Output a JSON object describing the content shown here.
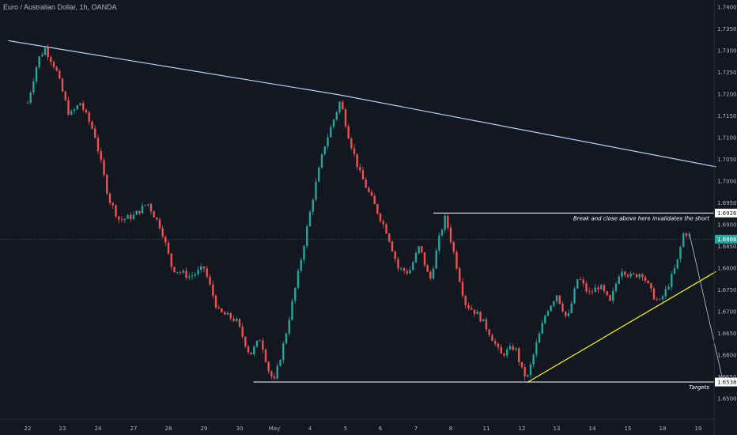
{
  "header": {
    "title": "Euro / Australian Dollar, 1h, OANDA"
  },
  "colors": {
    "background": "#131722",
    "up_candle": "#26a69a",
    "down_candle": "#ef5350",
    "resistance_trendline": "#b3d1f5",
    "support_trendline": "#ffff00",
    "horizontal_lines": "#ffffff",
    "current_price": "#26a69a"
  },
  "chart_data": {
    "type": "candlestick",
    "title": "Euro / Australian Dollar, 1h, OANDA",
    "ylim": [
      1.645,
      1.741
    ],
    "y_ticks": [
      "1.74000",
      "1.73500",
      "1.73000",
      "1.72500",
      "1.72000",
      "1.71500",
      "1.71000",
      "1.70500",
      "1.70000",
      "1.69500",
      "1.69000",
      "1.68500",
      "1.68000",
      "1.67500",
      "1.67000",
      "1.66500",
      "1.66000",
      "1.65500",
      "1.65000"
    ],
    "x_ticks": [
      "22",
      "23",
      "24",
      "27",
      "28",
      "29",
      "30",
      "May",
      "4",
      "5",
      "6",
      "7",
      "8",
      "11",
      "12",
      "13",
      "14",
      "15",
      "18",
      "19"
    ],
    "price_path": [
      {
        "x": 0.0,
        "y": 1.718
      },
      {
        "x": 0.3,
        "y": 1.728
      },
      {
        "x": 0.5,
        "y": 1.7305
      },
      {
        "x": 0.8,
        "y": 1.726
      },
      {
        "x": 1.2,
        "y": 1.715
      },
      {
        "x": 1.5,
        "y": 1.718
      },
      {
        "x": 1.9,
        "y": 1.711
      },
      {
        "x": 2.3,
        "y": 1.696
      },
      {
        "x": 2.6,
        "y": 1.691
      },
      {
        "x": 3.0,
        "y": 1.692
      },
      {
        "x": 3.4,
        "y": 1.695
      },
      {
        "x": 3.8,
        "y": 1.689
      },
      {
        "x": 4.1,
        "y": 1.68
      },
      {
        "x": 4.6,
        "y": 1.678
      },
      {
        "x": 5.0,
        "y": 1.68
      },
      {
        "x": 5.4,
        "y": 1.67
      },
      {
        "x": 5.9,
        "y": 1.668
      },
      {
        "x": 6.3,
        "y": 1.66
      },
      {
        "x": 6.6,
        "y": 1.664
      },
      {
        "x": 6.85,
        "y": 1.656
      },
      {
        "x": 7.0,
        "y": 1.654
      },
      {
        "x": 7.3,
        "y": 1.664
      },
      {
        "x": 7.7,
        "y": 1.68
      },
      {
        "x": 8.1,
        "y": 1.697
      },
      {
        "x": 8.4,
        "y": 1.708
      },
      {
        "x": 8.7,
        "y": 1.715
      },
      {
        "x": 8.85,
        "y": 1.7185
      },
      {
        "x": 9.1,
        "y": 1.71
      },
      {
        "x": 9.4,
        "y": 1.702
      },
      {
        "x": 9.8,
        "y": 1.695
      },
      {
        "x": 10.2,
        "y": 1.688
      },
      {
        "x": 10.5,
        "y": 1.68
      },
      {
        "x": 10.8,
        "y": 1.679
      },
      {
        "x": 11.1,
        "y": 1.685
      },
      {
        "x": 11.4,
        "y": 1.677
      },
      {
        "x": 11.7,
        "y": 1.688
      },
      {
        "x": 11.85,
        "y": 1.6918
      },
      {
        "x": 12.1,
        "y": 1.683
      },
      {
        "x": 12.4,
        "y": 1.672
      },
      {
        "x": 12.8,
        "y": 1.669
      },
      {
        "x": 13.1,
        "y": 1.665
      },
      {
        "x": 13.4,
        "y": 1.66
      },
      {
        "x": 13.8,
        "y": 1.662
      },
      {
        "x": 14.0,
        "y": 1.6565
      },
      {
        "x": 14.15,
        "y": 1.6545
      },
      {
        "x": 14.4,
        "y": 1.662
      },
      {
        "x": 14.7,
        "y": 1.67
      },
      {
        "x": 15.0,
        "y": 1.674
      },
      {
        "x": 15.3,
        "y": 1.668
      },
      {
        "x": 15.6,
        "y": 1.678
      },
      {
        "x": 15.9,
        "y": 1.674
      },
      {
        "x": 16.2,
        "y": 1.676
      },
      {
        "x": 16.5,
        "y": 1.672
      },
      {
        "x": 16.8,
        "y": 1.68
      },
      {
        "x": 17.1,
        "y": 1.678
      },
      {
        "x": 17.4,
        "y": 1.679
      },
      {
        "x": 17.7,
        "y": 1.674
      },
      {
        "x": 17.9,
        "y": 1.672
      },
      {
        "x": 18.1,
        "y": 1.675
      },
      {
        "x": 18.4,
        "y": 1.681
      },
      {
        "x": 18.6,
        "y": 1.6885
      },
      {
        "x": 18.8,
        "y": 1.687
      }
    ],
    "annotations": {
      "invalidation_label": "Break and close above here invalidates the short",
      "invalidation_price": "1.69266",
      "current_price": "1.68666",
      "targets_label": "Targets",
      "target_price": "1.65381"
    },
    "lines": {
      "resistance": [
        {
          "x": -0.55,
          "y": 1.7323
        },
        {
          "x": 8.85,
          "y": 1.7198
        },
        {
          "x": 19.5,
          "y": 1.7033
        }
      ],
      "support": [
        {
          "x": 14.15,
          "y": 1.6537
        },
        {
          "x": 19.5,
          "y": 1.6792
        }
      ],
      "invalidation": {
        "from_x": 11.5,
        "to_x": 19.5,
        "y": 1.69266
      },
      "target": {
        "from_x": 6.4,
        "to_x": 19.5,
        "y": 1.65381
      },
      "projection": [
        {
          "x": 18.75,
          "y": 1.688
        },
        {
          "x": 19.7,
          "y": 1.654
        }
      ]
    }
  }
}
